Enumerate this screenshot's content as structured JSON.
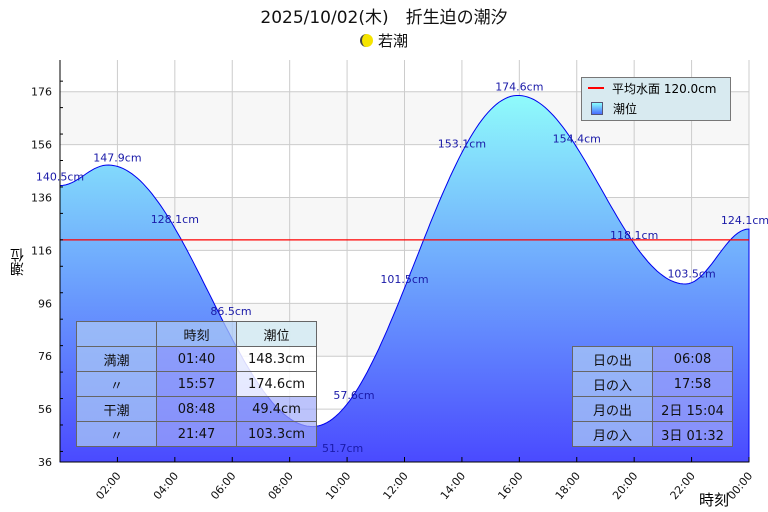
{
  "title": "2025/10/02(木)　折生迫の潮汐",
  "moon_phase": "若潮",
  "chart_data": {
    "type": "area",
    "xlabel": "時刻",
    "ylabel": "潮位",
    "xlim": [
      0,
      24
    ],
    "ylim": [
      36,
      188
    ],
    "yticks": [
      36,
      56,
      76,
      96,
      116,
      136,
      156,
      176
    ],
    "xticks": [
      "02:00",
      "04:00",
      "06:00",
      "08:00",
      "10:00",
      "12:00",
      "14:00",
      "16:00",
      "18:00",
      "20:00",
      "22:00",
      "00:00"
    ],
    "mean_level": 120.0,
    "extremes": [
      [
        0,
        140.5
      ],
      [
        1.667,
        148.3
      ],
      [
        8.8,
        49.4
      ],
      [
        15.95,
        174.6
      ],
      [
        21.783,
        103.3
      ],
      [
        24,
        124.1
      ]
    ],
    "point_labels": [
      {
        "h": 0,
        "text": "140.5cm"
      },
      {
        "h": 2,
        "text": "147.9cm"
      },
      {
        "h": 4,
        "text": "128.1cm"
      },
      {
        "h": 6,
        "text": "86.5cm"
      },
      {
        "h": 8,
        "text": "51.7cm"
      },
      {
        "h": 10,
        "text": "57.6cm"
      },
      {
        "h": 12,
        "text": "101.5cm"
      },
      {
        "h": 14,
        "text": "153.1cm"
      },
      {
        "h": 16,
        "text": "174.6cm"
      },
      {
        "h": 18,
        "text": "154.4cm"
      },
      {
        "h": 20,
        "text": "118.1cm"
      },
      {
        "h": 22,
        "text": "103.5cm"
      },
      {
        "h": 24,
        "text": "124.1cm"
      }
    ],
    "legend": {
      "mean": "平均水面 120.0cm",
      "tide": "潮位"
    }
  },
  "tide_table": {
    "headers": [
      "",
      "時刻",
      "潮位"
    ],
    "rows": [
      [
        "満潮",
        "01:40",
        "148.3cm"
      ],
      [
        "〃",
        "15:57",
        "174.6cm"
      ],
      [
        "干潮",
        "08:48",
        "49.4cm"
      ],
      [
        "〃",
        "21:47",
        "103.3cm"
      ]
    ]
  },
  "sun_moon": [
    [
      "日の出",
      "06:08"
    ],
    [
      "日の入",
      "17:58"
    ],
    [
      "月の出",
      "2日 15:04"
    ],
    [
      "月の入",
      "3日 01:32"
    ]
  ],
  "colors": {
    "fill_top": "#8ffbfb",
    "fill_bottom": "#4a4aff",
    "mean_line": "#ff0000",
    "label": "#00008b"
  }
}
